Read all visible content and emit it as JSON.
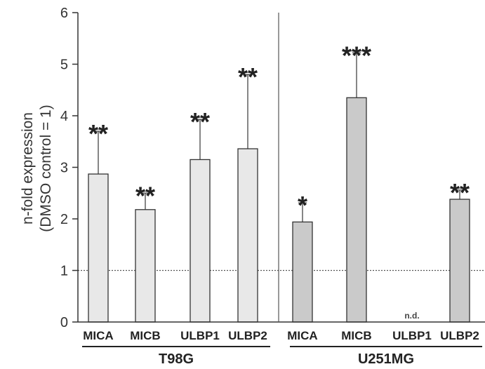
{
  "chart_data": {
    "type": "bar",
    "ylabel_line1": "n-fold expression",
    "ylabel_line2": "(DMSO control = 1)",
    "ylim": [
      0,
      6
    ],
    "yticks": [
      "0",
      "1",
      "2",
      "3",
      "4",
      "5",
      "6"
    ],
    "reference_line": 1,
    "groups": [
      {
        "name": "T98G",
        "color": "#e8e8e8",
        "bars": [
          {
            "category": "MICA",
            "value": 2.87,
            "error": 0.83,
            "significance": "**"
          },
          {
            "category": "MICB",
            "value": 2.18,
            "error": 0.32,
            "significance": "**"
          },
          {
            "category": "ULBP1",
            "value": 3.15,
            "error": 0.78,
            "significance": "**"
          },
          {
            "category": "ULBP2",
            "value": 3.36,
            "error": 1.44,
            "significance": "**"
          }
        ]
      },
      {
        "name": "U251MG",
        "color": "#cacaca",
        "bars": [
          {
            "category": "MICA",
            "value": 1.94,
            "error": 0.37,
            "significance": "*"
          },
          {
            "category": "MICB",
            "value": 4.35,
            "error": 0.87,
            "significance": "***"
          },
          {
            "category": "ULBP1",
            "value": null,
            "error": null,
            "significance": "",
            "note": "n.d."
          },
          {
            "category": "ULBP2",
            "value": 2.38,
            "error": 0.18,
            "significance": "**"
          }
        ]
      }
    ]
  }
}
